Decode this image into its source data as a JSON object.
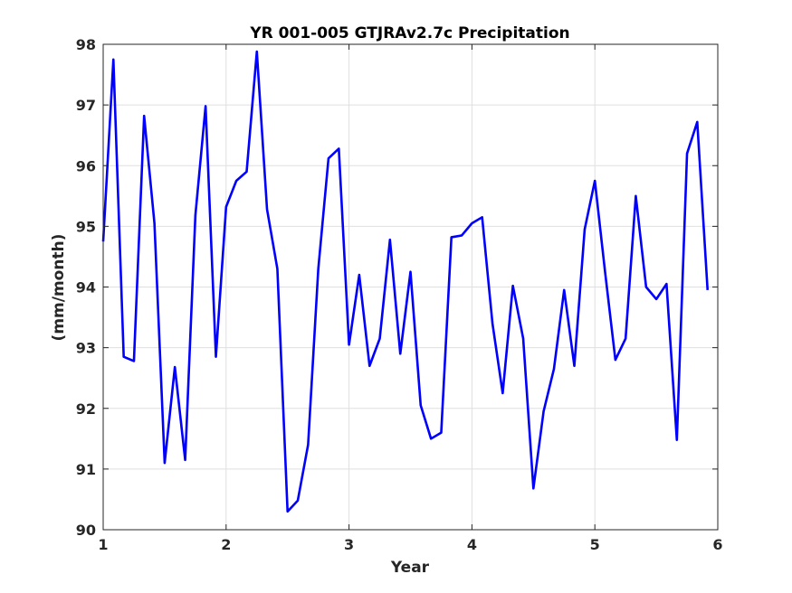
{
  "chart_data": {
    "type": "line",
    "title": "YR 001-005 GTJRAv2.7c Precipitation",
    "xlabel": "Year",
    "ylabel": "(mm/month)",
    "xlim": [
      1,
      6
    ],
    "ylim": [
      90,
      98
    ],
    "xticks": [
      "1",
      "2",
      "3",
      "4",
      "5",
      "6"
    ],
    "yticks": [
      "90",
      "91",
      "92",
      "93",
      "94",
      "95",
      "96",
      "97",
      "98"
    ],
    "grid": true,
    "line_color": "#0000ff",
    "series": [
      {
        "x": [
          1.0,
          1.083,
          1.167,
          1.25,
          1.333,
          1.417,
          1.5,
          1.583,
          1.667,
          1.75,
          1.833,
          1.917,
          2.0,
          2.083,
          2.167,
          2.25,
          2.333,
          2.417,
          2.5,
          2.583,
          2.667,
          2.75,
          2.833,
          2.917,
          3.0,
          3.083,
          3.167,
          3.25,
          3.333,
          3.417,
          3.5,
          3.583,
          3.667,
          3.75,
          3.833,
          3.917,
          4.0,
          4.083,
          4.167,
          4.25,
          4.333,
          4.417,
          4.5,
          4.583,
          4.667,
          4.75,
          4.833,
          4.917,
          5.0,
          5.083,
          5.167,
          5.25,
          5.333,
          5.417,
          5.5,
          5.583,
          5.667,
          5.75,
          5.833,
          5.917
        ],
        "values": [
          94.75,
          97.75,
          92.85,
          92.78,
          96.82,
          95.05,
          91.1,
          92.68,
          91.15,
          95.18,
          96.98,
          92.85,
          95.32,
          95.75,
          95.9,
          97.88,
          95.28,
          94.3,
          90.3,
          90.48,
          91.4,
          94.3,
          96.12,
          96.28,
          93.05,
          94.2,
          92.7,
          93.15,
          94.78,
          92.9,
          94.25,
          92.05,
          91.5,
          91.6,
          94.82,
          94.85,
          95.05,
          95.15,
          93.4,
          92.25,
          94.02,
          93.15,
          90.68,
          91.95,
          92.65,
          93.95,
          92.7,
          94.95,
          95.75,
          94.25,
          92.8,
          93.15,
          95.5,
          94.0,
          93.8,
          94.05,
          91.48,
          96.2,
          96.72,
          93.95
        ]
      }
    ]
  }
}
